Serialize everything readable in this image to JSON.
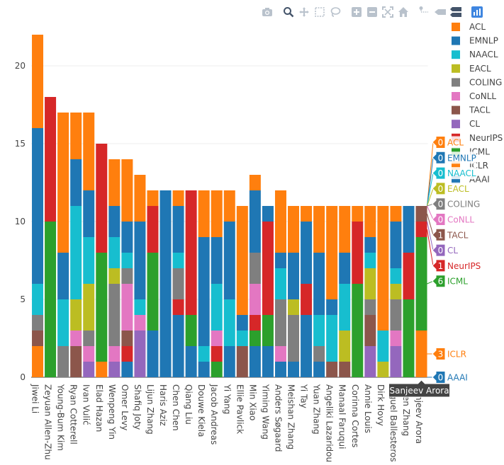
{
  "chart_data": {
    "type": "bar",
    "stacked": true,
    "yticks": [
      0,
      5,
      10,
      15,
      20
    ],
    "ylim": [
      0,
      23
    ],
    "categories": [
      "Jiwei Li",
      "Zeyuan Allen-Zhu",
      "Young-Bum Kim",
      "Ryan Cotterell",
      "Ivan Vulić",
      "Elad Hazan",
      "Wenpeng Yin",
      "Omer Levy",
      "Shafiq Joty",
      "Lijun Zhang",
      "Haris Aziz",
      "Chen Chen",
      "Qiang Liu",
      "Douwe Kiela",
      "Jacob Andreas",
      "Yi Yang",
      "Ellie Pavlick",
      "Min Xiao",
      "Yiming Wang",
      "Anders Søgaard",
      "Meishan Zhang",
      "Yi Tay",
      "Yuan Zhang",
      "Angeliki Lazaridou",
      "Manaal Faruqui",
      "Corinna Cortes",
      "Annie Louis",
      "Dirk Hovy",
      "Miguel Ballesteros",
      "Chen Zhang",
      "Sanjeev Arora"
    ],
    "series": [
      {
        "name": "AAAI",
        "color": "#1f77b4",
        "values": [
          0,
          0,
          0,
          0,
          0,
          0,
          0,
          1,
          0,
          3,
          12,
          4,
          2,
          1,
          0,
          2,
          0,
          2,
          2,
          1,
          1,
          4,
          1,
          0,
          0,
          0,
          0,
          0,
          0,
          0,
          0
        ]
      },
      {
        "name": "ICLR",
        "color": "#ff7f0e",
        "values": [
          2,
          0,
          0,
          0,
          0,
          1,
          0,
          0,
          0,
          0,
          0,
          0,
          0,
          0,
          0,
          0,
          0,
          0,
          0,
          0,
          0,
          0,
          0,
          0,
          0,
          0,
          0,
          0,
          0,
          0,
          3
        ]
      },
      {
        "name": "ICML",
        "color": "#2ca02c",
        "values": [
          0,
          10,
          0,
          0,
          0,
          7,
          0,
          0,
          0,
          5,
          0,
          0,
          2,
          0,
          1,
          0,
          0,
          1,
          2,
          0,
          0,
          0,
          0,
          0,
          0,
          6,
          0,
          0,
          0,
          5,
          6
        ]
      },
      {
        "name": "NeurIPS",
        "color": "#d62728",
        "values": [
          0,
          8,
          0,
          0,
          0,
          7,
          0,
          1,
          0,
          3,
          0,
          1,
          8,
          0,
          1,
          0,
          0,
          1,
          6,
          0,
          0,
          2,
          0,
          0,
          0,
          4,
          0,
          0,
          0,
          3,
          1
        ]
      },
      {
        "name": "CL",
        "color": "#9467bd",
        "values": [
          0,
          0,
          0,
          0,
          1,
          0,
          1,
          0,
          3,
          0,
          0,
          0,
          0,
          0,
          0,
          0,
          0,
          0,
          0,
          0,
          0,
          0,
          0,
          0,
          0,
          0,
          2,
          0,
          2,
          0,
          0
        ]
      },
      {
        "name": "TACL",
        "color": "#8c564b",
        "values": [
          1,
          0,
          0,
          2,
          0,
          0,
          0,
          1,
          0,
          0,
          0,
          0,
          0,
          0,
          0,
          0,
          2,
          0,
          0,
          0,
          0,
          0,
          0,
          1,
          1,
          0,
          2,
          0,
          0,
          0,
          1
        ]
      },
      {
        "name": "CoNLL",
        "color": "#e377c2",
        "values": [
          0,
          0,
          0,
          1,
          1,
          0,
          1,
          3,
          1,
          0,
          0,
          0,
          0,
          0,
          1,
          0,
          0,
          2,
          0,
          1,
          0,
          0,
          0,
          0,
          0,
          0,
          0,
          0,
          1,
          0,
          0
        ]
      },
      {
        "name": "COLING",
        "color": "#7f7f7f",
        "values": [
          1,
          0,
          2,
          0,
          1,
          0,
          4,
          1,
          0,
          0,
          0,
          2,
          0,
          0,
          0,
          0,
          0,
          2,
          0,
          3,
          3,
          0,
          1,
          0,
          0,
          0,
          1,
          0,
          2,
          0,
          0
        ]
      },
      {
        "name": "EACL",
        "color": "#bcbd22",
        "values": [
          0,
          0,
          0,
          2,
          3,
          0,
          1,
          0,
          0,
          0,
          0,
          0,
          0,
          0,
          0,
          0,
          0,
          0,
          0,
          0,
          1,
          0,
          0,
          0,
          2,
          0,
          2,
          1,
          1,
          0,
          0
        ]
      },
      {
        "name": "NAACL",
        "color": "#17becf",
        "values": [
          2,
          0,
          3,
          6,
          3,
          0,
          2,
          1,
          1,
          0,
          0,
          1,
          0,
          1,
          3,
          3,
          1,
          0,
          0,
          2,
          0,
          0,
          2,
          3,
          3,
          0,
          1,
          2,
          1,
          0,
          0
        ]
      },
      {
        "name": "EMNLP",
        "color": "#1f77b4",
        "values": [
          10,
          0,
          3,
          3,
          3,
          0,
          2,
          2,
          5,
          0,
          0,
          3,
          0,
          7,
          3,
          5,
          1,
          4,
          1,
          1,
          3,
          4,
          4,
          1,
          2,
          0,
          1,
          0,
          3,
          3,
          0
        ]
      },
      {
        "name": "ACL",
        "color": "#ff7f0e",
        "values": [
          6,
          0,
          9,
          3,
          5,
          0,
          3,
          4,
          3,
          1,
          0,
          1,
          0,
          3,
          3,
          2,
          7,
          1,
          0,
          4,
          3,
          1,
          3,
          6,
          3,
          1,
          2,
          8,
          1,
          0,
          0
        ]
      }
    ],
    "legend": [
      "ACL",
      "EMNLP",
      "NAACL",
      "EACL",
      "COLING",
      "CoNLL",
      "TACL",
      "CL",
      "NeurIPS",
      "ICML",
      "ICLR",
      "AAAI"
    ],
    "hover": {
      "category": "Sanjeev Arora",
      "labels": [
        {
          "series": "ACL",
          "value": "0"
        },
        {
          "series": "EMNLP",
          "value": "0"
        },
        {
          "series": "NAACL",
          "value": "0"
        },
        {
          "series": "EACL",
          "value": "0"
        },
        {
          "series": "COLING",
          "value": "0"
        },
        {
          "series": "CoNLL",
          "value": "0"
        },
        {
          "series": "TACL",
          "value": "1"
        },
        {
          "series": "CL",
          "value": "0"
        },
        {
          "series": "NeurIPS",
          "value": "1"
        },
        {
          "series": "ICML",
          "value": "6"
        },
        {
          "series": "ICLR",
          "value": "3"
        },
        {
          "series": "AAAI",
          "value": "0"
        }
      ]
    }
  },
  "modebar": [
    "camera-icon",
    "zoom-icon",
    "pan-icon",
    "box-select-icon",
    "lasso-select-icon",
    "zoom-in-icon",
    "zoom-out-icon",
    "autoscale-icon",
    "reset-axes-icon",
    "spike-lines-icon",
    "hover-closest-icon",
    "hover-compare-icon",
    "plotly-logo-icon"
  ]
}
